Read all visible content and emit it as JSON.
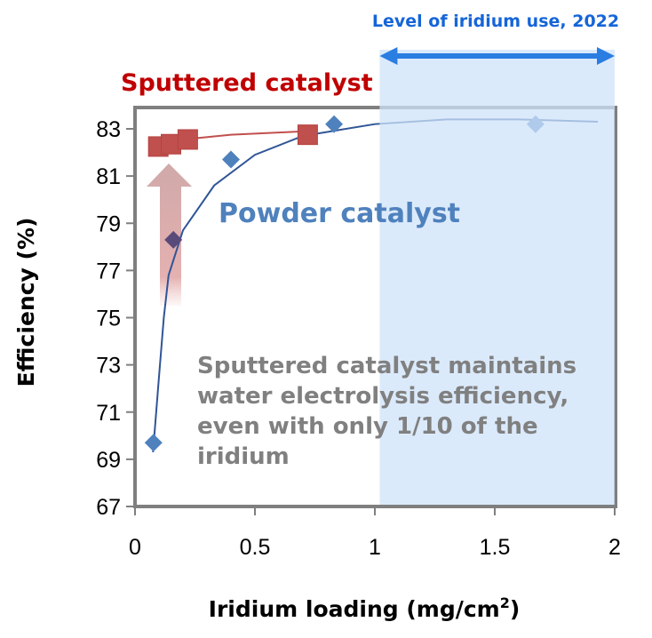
{
  "chart_data": {
    "type": "scatter",
    "xlabel": "Iridium loading (mg/cm",
    "xlabel_sup": "2",
    "xlabel_end": ")",
    "ylabel": "Efficiency (%)",
    "xlim": [
      0,
      2
    ],
    "ylim": [
      67,
      83
    ],
    "x_ticks": [
      "0",
      "0.5",
      "1",
      "1.5",
      "2"
    ],
    "x_tick_values": [
      0,
      0.5,
      1,
      1.5,
      2
    ],
    "y_ticks": [
      "67",
      "69",
      "71",
      "73",
      "75",
      "77",
      "79",
      "81",
      "83"
    ],
    "y_tick_values": [
      67,
      69,
      71,
      73,
      75,
      77,
      79,
      81,
      83
    ],
    "grid": false,
    "series": [
      {
        "name": "Powder catalyst",
        "color": "#4f81bd",
        "marker": "diamond",
        "x": [
          0.077,
          0.16,
          0.4,
          0.83,
          1.67
        ],
        "y": [
          69.7,
          78.3,
          81.7,
          83.2,
          83.2
        ],
        "trendline": {
          "color": "#2f5597",
          "x": [
            0.075,
            0.1,
            0.12,
            0.14,
            0.2,
            0.33,
            0.5,
            0.7,
            1.0,
            1.3,
            1.6,
            1.93
          ],
          "y": [
            69.3,
            72.5,
            75.0,
            76.8,
            78.7,
            80.6,
            81.9,
            82.7,
            83.2,
            83.4,
            83.4,
            83.3
          ]
        }
      },
      {
        "name": "Sputtered catalyst",
        "color": "#c0504d",
        "label_color": "#c00000",
        "marker": "square",
        "x": [
          0.097,
          0.15,
          0.22,
          0.72
        ],
        "y": [
          82.25,
          82.35,
          82.55,
          82.75
        ],
        "trendline": {
          "color": "#c0504d",
          "x": [
            0.1,
            0.2,
            0.4,
            0.72
          ],
          "y": [
            82.2,
            82.55,
            82.75,
            82.9
          ]
        }
      }
    ],
    "shaded_region": {
      "label": "Level of iridium use, 2022",
      "x": [
        1.02,
        2.0
      ],
      "color": "#dbeafb",
      "arrow_color": "#2a7de1"
    },
    "annotation": {
      "lines": [
        "Sputtered catalyst maintains",
        "water electrolysis efficiency,",
        "even with only 1/10 of the",
        "iridium"
      ],
      "color": "#808080"
    }
  }
}
